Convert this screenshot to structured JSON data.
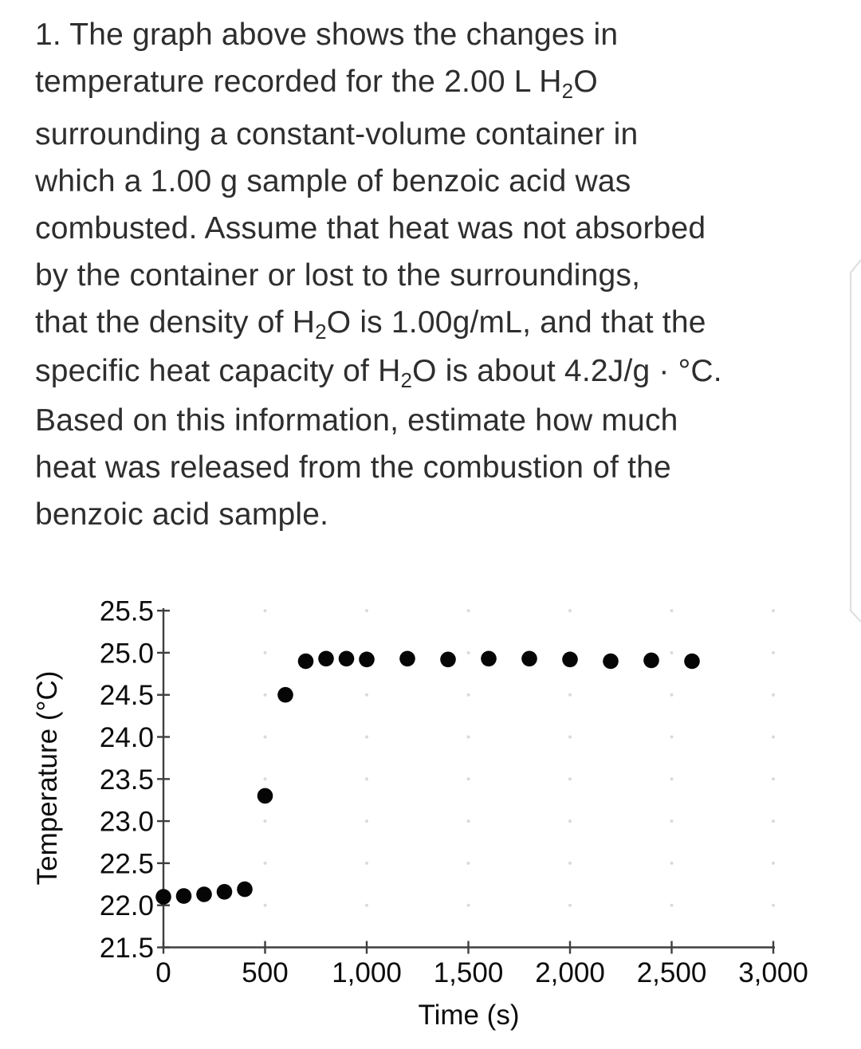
{
  "page": {
    "background_color": "#ffffff",
    "text_color": "#2e2e2e"
  },
  "question": {
    "number": "1.",
    "full_text": "1. The graph above shows the changes in temperature recorded for the 2.00 L H2O surrounding a constant-volume container in which a 1.00 g sample of benzoic acid was combusted. Assume that heat was not absorbed by the container or lost to the surroundings, that the density of H2O is 1.00g/mL, and that the specific heat capacity of H2O is about 4.2J/g · °C. Based on this information, estimate how much heat was released from the combustion of the benzoic acid sample.",
    "lines": [
      {
        "runs": [
          {
            "t": "1. The graph above shows the changes in"
          }
        ]
      },
      {
        "runs": [
          {
            "t": "temperature recorded for the 2.00 L H"
          },
          {
            "t": "2",
            "sub": true
          },
          {
            "t": "O"
          }
        ]
      },
      {
        "runs": [
          {
            "t": "surrounding a constant-volume container in"
          }
        ]
      },
      {
        "runs": [
          {
            "t": "which a 1.00 g sample of benzoic acid was"
          }
        ]
      },
      {
        "runs": [
          {
            "t": "combusted. Assume that heat was not absorbed"
          }
        ]
      },
      {
        "runs": [
          {
            "t": "by the container or lost to the surroundings,"
          }
        ]
      },
      {
        "runs": [
          {
            "t": "that the density of H"
          },
          {
            "t": "2",
            "sub": true
          },
          {
            "t": "O is 1.00g/mL, and that the"
          }
        ]
      },
      {
        "runs": [
          {
            "t": "specific heat capacity of H"
          },
          {
            "t": "2",
            "sub": true
          },
          {
            "t": "O is about 4.2J/g · °C."
          }
        ]
      },
      {
        "runs": [
          {
            "t": "Based on this information, estimate how much"
          }
        ]
      },
      {
        "runs": [
          {
            "t": "heat was released from the combustion of the"
          }
        ]
      },
      {
        "runs": [
          {
            "t": "benzoic acid sample."
          }
        ]
      }
    ]
  },
  "chart_data": {
    "type": "scatter",
    "title": "",
    "xlabel": "Time (s)",
    "ylabel": "Temperature (°C)",
    "xlim": [
      0,
      3000
    ],
    "ylim": [
      21.5,
      25.5
    ],
    "xticks": [
      0,
      500,
      1000,
      1500,
      2000,
      2500,
      3000
    ],
    "xtick_labels": [
      "0",
      "500",
      "1,000",
      "1,500",
      "2,000",
      "2,500",
      "3,000"
    ],
    "yticks": [
      21.5,
      22.0,
      22.5,
      23.0,
      23.5,
      24.0,
      24.5,
      25.0,
      25.5
    ],
    "ytick_labels": [
      "21.5",
      "22.0",
      "22.5",
      "23.0",
      "23.5",
      "24.0",
      "24.5",
      "25.0",
      "25.5"
    ],
    "grid": {
      "style": "faint dots at tick intersections",
      "color": "#c6c6c6"
    },
    "legend": null,
    "axis_color": "#3f3f3f",
    "series": [
      {
        "name": "water-temperature",
        "marker": "filled-circle",
        "color": "#060606",
        "points": [
          [
            0,
            22.1
          ],
          [
            100,
            22.11
          ],
          [
            200,
            22.13
          ],
          [
            300,
            22.16
          ],
          [
            400,
            22.19
          ],
          [
            500,
            23.3
          ],
          [
            600,
            24.5
          ],
          [
            700,
            24.9
          ],
          [
            800,
            24.93
          ],
          [
            900,
            24.93
          ],
          [
            1000,
            24.92
          ],
          [
            1200,
            24.93
          ],
          [
            1400,
            24.92
          ],
          [
            1600,
            24.93
          ],
          [
            1800,
            24.93
          ],
          [
            2000,
            24.92
          ],
          [
            2200,
            24.9
          ],
          [
            2400,
            24.91
          ],
          [
            2600,
            24.9
          ]
        ]
      }
    ],
    "annotations": [
      {
        "name": "stray-scan-mark",
        "color": "#dfdfdf"
      }
    ]
  }
}
